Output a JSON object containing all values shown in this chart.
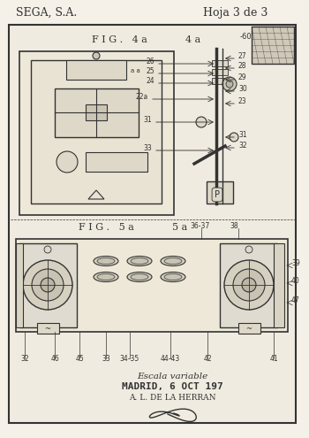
{
  "bg_color": "#f5f0e8",
  "paper_color": "#f0ebe0",
  "border_color": "#333333",
  "line_color": "#333333",
  "title_left": "SEGA, S.A.",
  "title_right": "Hoja 3 de 3",
  "fig4a_label": "F I G .   4 a",
  "fig5a_label": "F I G .   5 a",
  "fig4a_numbers_left": [
    "26",
    "25",
    "24",
    "22a",
    "31",
    "33"
  ],
  "fig4a_numbers_right": [
    "27",
    "28",
    "29",
    "30",
    "23",
    "31",
    "32"
  ],
  "fig5a_numbers_bottom": [
    "32",
    "46",
    "45",
    "33",
    "34-35",
    "44-43",
    "42",
    "41"
  ],
  "fig5a_numbers_right": [
    "39",
    "40",
    "47"
  ],
  "fig5a_numbers_top": [
    "36-37",
    "38"
  ],
  "footer_line1": "Escala variable",
  "footer_line2": "MADRID, 6 OCT 197",
  "footer_line3": "A. L. DE LA HERRAN"
}
